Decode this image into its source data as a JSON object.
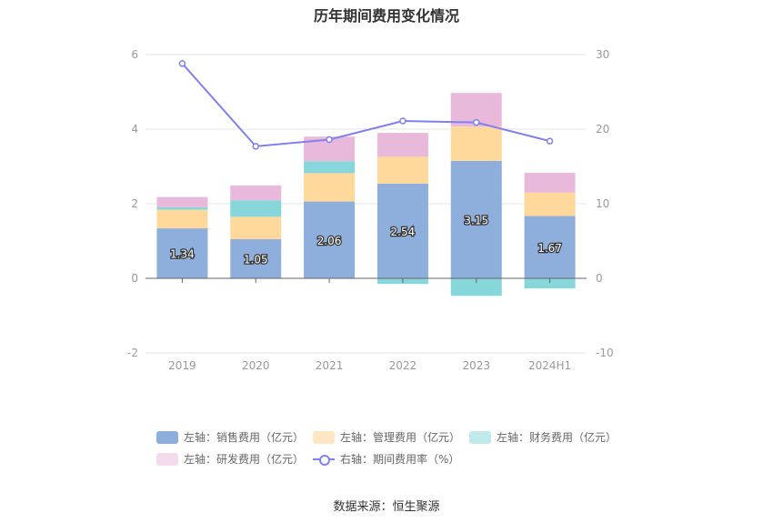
{
  "title": "历年期间费用变化情况",
  "source": "数据来源：恒生聚源",
  "colors": {
    "sales": "#8eaedb",
    "admin": "#fed99b",
    "finance": "#86d6da",
    "rd": "#e8b9da",
    "rate": "#8080f0"
  },
  "chart_data": {
    "type": "bar",
    "stacked": true,
    "categories": [
      "2019",
      "2020",
      "2021",
      "2022",
      "2023",
      "2024H1"
    ],
    "left_axis": {
      "ylim": [
        -2,
        6
      ],
      "ticks": [
        "-2",
        "0",
        "2",
        "4",
        "6"
      ]
    },
    "right_axis": {
      "ylim": [
        -10,
        30
      ],
      "ticks": [
        "-10",
        "0",
        "10",
        "20",
        "30"
      ]
    },
    "series": [
      {
        "name": "左轴：销售费用（亿元）",
        "key": "sales",
        "axis": "left",
        "type": "bar",
        "values": [
          1.34,
          1.05,
          2.06,
          2.54,
          3.15,
          1.67
        ],
        "labels": [
          "1.34",
          "1.05",
          "2.06",
          "2.54",
          "3.15",
          "1.67"
        ]
      },
      {
        "name": "左轴：管理费用（亿元）",
        "key": "admin",
        "axis": "left",
        "type": "bar",
        "values": [
          0.5,
          0.6,
          0.76,
          0.72,
          0.92,
          0.63
        ]
      },
      {
        "name": "左轴：财务费用（亿元）",
        "key": "finance",
        "axis": "left",
        "type": "bar",
        "values": [
          0.07,
          0.44,
          0.32,
          -0.15,
          -0.47,
          -0.27
        ]
      },
      {
        "name": "左轴：研发费用（亿元）",
        "key": "rd",
        "axis": "left",
        "type": "bar",
        "values": [
          0.27,
          0.4,
          0.66,
          0.64,
          0.9,
          0.53
        ]
      },
      {
        "name": "右轴：期间费用率（%）",
        "key": "rate",
        "axis": "right",
        "type": "line",
        "values": [
          28.8,
          17.7,
          18.6,
          21.1,
          20.9,
          18.4
        ]
      }
    ],
    "grid": true,
    "legend_position": "bottom"
  }
}
